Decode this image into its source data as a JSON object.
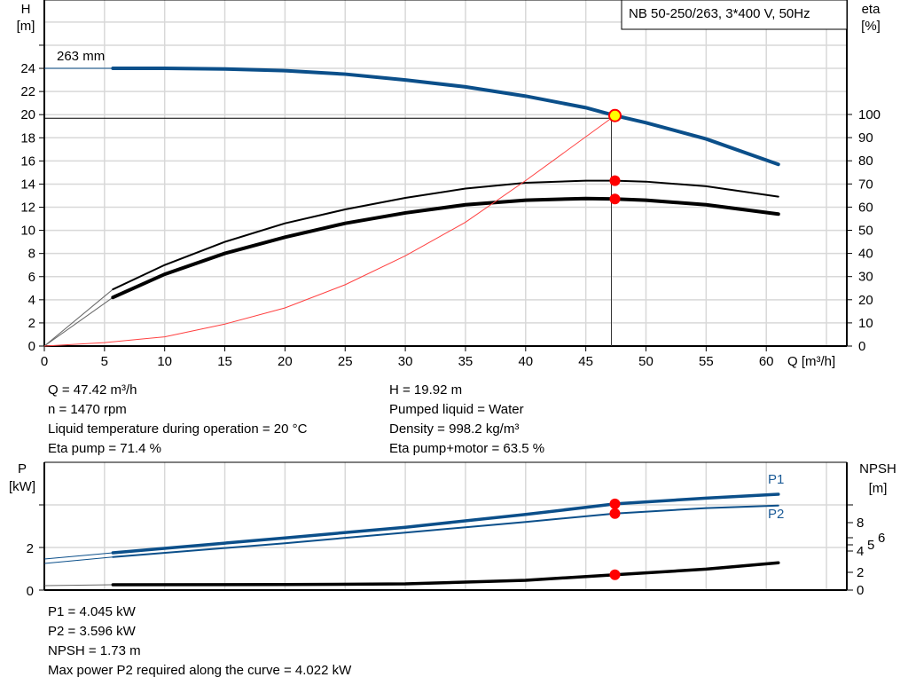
{
  "title": "NB 50-250/263, 3*400 V, 50Hz",
  "chart_data": [
    {
      "type": "line",
      "title": "NB 50-250/263, 3*400 V, 50Hz",
      "xlabel": "Q [m³/h]",
      "xlim": [
        0,
        65
      ],
      "xticks": [
        0,
        5,
        10,
        15,
        20,
        25,
        30,
        35,
        40,
        45,
        50,
        55,
        60
      ],
      "ylabel": "H\n[m]",
      "ylabel_lines": [
        "H",
        "[m]"
      ],
      "ylim": [
        0,
        30
      ],
      "yticks": [
        0,
        2,
        4,
        6,
        8,
        10,
        12,
        14,
        16,
        18,
        20,
        22,
        24
      ],
      "y2label_lines": [
        "eta",
        "[%]"
      ],
      "y2lim": [
        0,
        100
      ],
      "y2ticks": [
        0,
        10,
        20,
        30,
        40,
        50,
        60,
        70,
        80,
        90,
        100
      ],
      "grid": true,
      "series": [
        {
          "name": "263 mm",
          "axis": "H",
          "color": "#0b4f8a",
          "x": [
            0,
            5.7,
            10,
            15,
            20,
            25,
            30,
            35,
            40,
            45,
            47.42,
            50,
            55,
            61
          ],
          "y": [
            24,
            24,
            24,
            23.95,
            23.8,
            23.5,
            23,
            22.4,
            21.6,
            20.6,
            19.92,
            19.3,
            17.9,
            15.7
          ]
        },
        {
          "axis": "eta",
          "color": "#000000",
          "x": [
            0,
            5.7,
            10,
            15,
            20,
            25,
            30,
            35,
            40,
            45,
            47.42,
            50,
            55,
            61
          ],
          "y": [
            0,
            24.5,
            35,
            45,
            53,
            59,
            64,
            68,
            70.5,
            71.4,
            71.4,
            71,
            69,
            64.5
          ]
        },
        {
          "axis": "eta",
          "color": "#000000",
          "x": [
            0,
            5.7,
            10,
            15,
            20,
            25,
            30,
            35,
            40,
            45,
            47.42,
            50,
            55,
            61
          ],
          "y": [
            0,
            21,
            31,
            40,
            47,
            53,
            57.5,
            61,
            63,
            63.7,
            63.5,
            63,
            61,
            57
          ]
        },
        {
          "axis": "H",
          "color": "#ff4040",
          "x": [
            0,
            5,
            10,
            15,
            20,
            25,
            30,
            35,
            40,
            47.42
          ],
          "y": [
            0,
            0.3,
            0.8,
            1.9,
            3.3,
            5.3,
            7.8,
            10.7,
            14.3,
            19.92
          ]
        }
      ],
      "duty_point": {
        "Q": 47.42,
        "H": 19.92,
        "eta_pump": 71.4,
        "eta_total": 63.5
      }
    },
    {
      "type": "line",
      "xlim": [
        0,
        65
      ],
      "ylabel_lines": [
        "P",
        "[kW]"
      ],
      "ylim": [
        0,
        6
      ],
      "yticks": [
        0,
        2
      ],
      "y2label_lines": [
        "NPSH",
        "[m]"
      ],
      "y2ticks": [
        0,
        2,
        4,
        5,
        6,
        8
      ],
      "grid": true,
      "series": [
        {
          "name": "P1",
          "axis": "P",
          "color": "#0b4f8a",
          "x": [
            0,
            5.7,
            20,
            30,
            40,
            47.42,
            55,
            61
          ],
          "y": [
            1.46,
            1.75,
            2.45,
            2.95,
            3.55,
            4.045,
            4.32,
            4.5
          ]
        },
        {
          "name": "P2",
          "axis": "P",
          "color": "#0b4f8a",
          "x": [
            0,
            5.7,
            20,
            30,
            40,
            47.42,
            55,
            61
          ],
          "y": [
            1.25,
            1.55,
            2.2,
            2.7,
            3.2,
            3.596,
            3.85,
            3.97
          ]
        },
        {
          "axis": "NPSH",
          "color": "#000000",
          "x": [
            0,
            5.7,
            20,
            30,
            40,
            47.42,
            55,
            61
          ],
          "y": [
            0.5,
            0.6,
            0.62,
            0.7,
            1.1,
            1.73,
            2.3,
            2.9
          ]
        }
      ],
      "duty_point": {
        "Q": 47.42,
        "P1": 4.045,
        "P2": 3.596,
        "NPSH": 1.73
      }
    }
  ],
  "info_top_left": [
    "Q = 47.42 m³/h",
    "n = 1470 rpm",
    "Liquid temperature during operation = 20 °C",
    "Eta pump = 71.4 %"
  ],
  "info_top_right": [
    "H = 19.92 m",
    "Pumped liquid = Water",
    "Density = 998.2 kg/m³",
    "Eta pump+motor = 63.5 %"
  ],
  "info_bottom": [
    "P1 = 4.045 kW",
    "P2 = 3.596 kW",
    "NPSH = 1.73 m",
    "Max power P2 required along the curve = 4.022 kW"
  ]
}
